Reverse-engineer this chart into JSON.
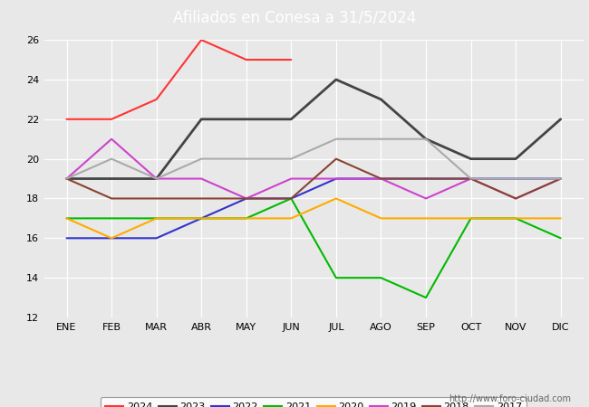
{
  "title": "Afiliados en Conesa a 31/5/2024",
  "header_bg": "#4e7abf",
  "months": [
    "ENE",
    "FEB",
    "MAR",
    "ABR",
    "MAY",
    "JUN",
    "JUL",
    "AGO",
    "SEP",
    "OCT",
    "NOV",
    "DIC"
  ],
  "series": {
    "2024": {
      "values": [
        22,
        22,
        23,
        26,
        25,
        25,
        null,
        null,
        null,
        null,
        null,
        null
      ],
      "color": "#ff3333",
      "linewidth": 1.5
    },
    "2023": {
      "values": [
        19,
        19,
        19,
        22,
        22,
        22,
        24,
        23,
        21,
        20,
        20,
        22
      ],
      "color": "#444444",
      "linewidth": 2.0
    },
    "2022": {
      "values": [
        16,
        16,
        16,
        17,
        18,
        18,
        19,
        19,
        19,
        19,
        19,
        19
      ],
      "color": "#3333cc",
      "linewidth": 1.5
    },
    "2021": {
      "values": [
        17,
        17,
        17,
        17,
        17,
        18,
        14,
        14,
        13,
        17,
        17,
        16
      ],
      "color": "#00bb00",
      "linewidth": 1.5
    },
    "2020": {
      "values": [
        17,
        16,
        17,
        17,
        17,
        17,
        18,
        17,
        17,
        17,
        17,
        17
      ],
      "color": "#ffaa00",
      "linewidth": 1.5
    },
    "2019": {
      "values": [
        19,
        21,
        19,
        19,
        18,
        19,
        19,
        19,
        18,
        19,
        18,
        19
      ],
      "color": "#cc44cc",
      "linewidth": 1.5
    },
    "2018": {
      "values": [
        19,
        18,
        18,
        18,
        18,
        18,
        20,
        19,
        19,
        19,
        18,
        19
      ],
      "color": "#884433",
      "linewidth": 1.5
    },
    "2017": {
      "values": [
        19,
        20,
        19,
        20,
        20,
        20,
        21,
        21,
        21,
        19,
        19,
        19
      ],
      "color": "#aaaaaa",
      "linewidth": 1.5
    }
  },
  "ylim": [
    12,
    26
  ],
  "yticks": [
    12,
    14,
    16,
    18,
    20,
    22,
    24,
    26
  ],
  "plot_bg": "#e8e8e8",
  "grid_color": "#ffffff",
  "url_text": "http://www.foro-ciudad.com",
  "legend_order": [
    "2024",
    "2023",
    "2022",
    "2021",
    "2020",
    "2019",
    "2018",
    "2017"
  ]
}
